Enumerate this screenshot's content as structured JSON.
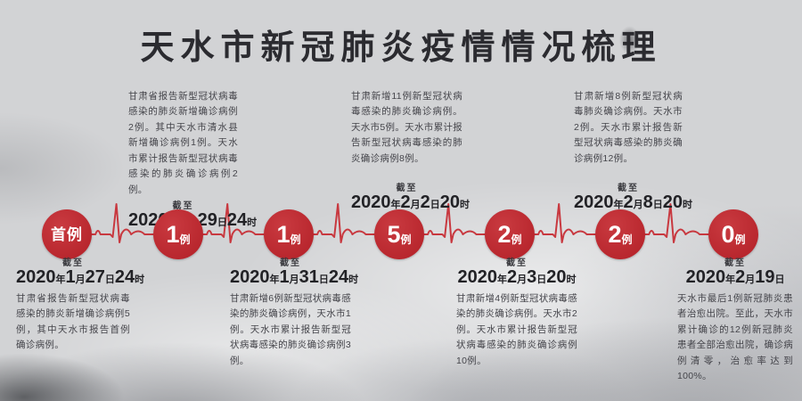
{
  "title": "天水市新冠肺炎疫情情况梳理",
  "colors": {
    "accent_red": "#bd2a31",
    "ecg_red": "#c8383f",
    "background_gray": "#d2d3d5",
    "text_dark": "#45454b"
  },
  "timeline": {
    "nodes": [
      {
        "big": "首例",
        "small": ""
      },
      {
        "big": "1",
        "small": "例"
      },
      {
        "big": "1",
        "small": "例"
      },
      {
        "big": "5",
        "small": "例"
      },
      {
        "big": "2",
        "small": "例"
      },
      {
        "big": "2",
        "small": "例"
      },
      {
        "big": "0",
        "small": "例"
      }
    ],
    "notes_top": [
      {
        "body": "甘肃省报告新型冠状病毒感染的肺炎新增确诊病例2例。其中天水市清水县新增确诊病例1例。天水市累计报告新型冠状病毒感染的肺炎确诊病例2例。",
        "cutoff": "截至",
        "date": "2020年1月29日24时"
      },
      {
        "body": "甘肃新增11例新型冠状病毒感染的肺炎确诊病例。天水市5例。天水市累计报告新型冠状病毒感染的肺炎确诊病例8例。",
        "cutoff": "截至",
        "date": "2020年2月2日20时"
      },
      {
        "body": "甘肃新增8例新型冠状病毒肺炎确诊病例。天水市2例。天水市累计报告新型冠状病毒感染的肺炎确诊病例12例。",
        "cutoff": "截至",
        "date": "2020年2月8日20时"
      }
    ],
    "notes_bottom": [
      {
        "cutoff": "截至",
        "date": "2020年1月27日24时",
        "body": "甘肃省报告新型冠状病毒感染的肺炎新增确诊病例5例，其中天水市报告首例确诊病例。"
      },
      {
        "cutoff": "截至",
        "date": "2020年1月31日24时",
        "body": "甘肃新增6例新型冠状病毒感染的肺炎确诊病例，天水市1例。天水市累计报告新型冠状病毒感染的肺炎确诊病例3例。"
      },
      {
        "cutoff": "截至",
        "date": "2020年2月3日20时",
        "body": "甘肃新增4例新型冠状病毒感染的肺炎确诊病例。天水市2例。天水市累计报告新型冠状病毒感染的肺炎确诊病例10例。"
      },
      {
        "cutoff": "截至",
        "date": "2020年2月19日",
        "body": "天水市最后1例新冠肺炎患者治愈出院。至此，天水市累计确诊的12例新冠肺炎患者全部治愈出院，确诊病例清零，治愈率达到100%。"
      }
    ]
  }
}
